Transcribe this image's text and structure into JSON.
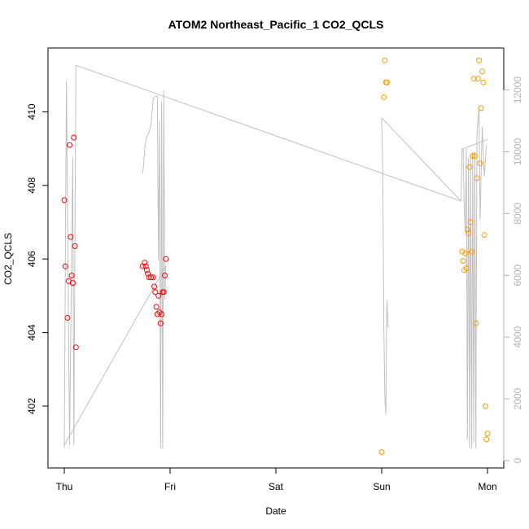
{
  "chart_data": {
    "type": "scatter",
    "title": "ATOM2 Northeast_Pacific_1 CO2_QCLS",
    "xlabel": "Date",
    "ylabel": "CO2_QCLS",
    "x_tick_labels": [
      "Thu",
      "Fri",
      "Sat",
      "Sun",
      "Mon"
    ],
    "x_tick_days": [
      0,
      1,
      2,
      3,
      4
    ],
    "xlim_days": [
      -0.2,
      4.1
    ],
    "ylim": [
      400.2,
      411.7
    ],
    "y_ticks": [
      402,
      404,
      406,
      408,
      410
    ],
    "y2lim": [
      -300,
      13600
    ],
    "y2_ticks": [
      0,
      2000,
      4000,
      6000,
      8000,
      10000,
      12000
    ],
    "grid": false,
    "colors": {
      "series1": "#ff0000",
      "series2": "#ff9900",
      "altitude": "#c0c0c0",
      "axis": "#000000",
      "axis_right": "#b3b3b3"
    },
    "series": [
      {
        "values": [
          [
            0.0,
            407.6
          ],
          [
            0.01,
            405.8
          ],
          [
            0.03,
            404.4
          ],
          [
            0.04,
            405.4
          ],
          [
            0.05,
            409.1
          ],
          [
            0.06,
            406.6
          ],
          [
            0.07,
            405.55
          ],
          [
            0.08,
            405.35
          ],
          [
            0.09,
            409.3
          ],
          [
            0.1,
            406.35
          ],
          [
            0.11,
            403.6
          ],
          [
            0.74,
            405.8
          ],
          [
            0.76,
            405.9
          ],
          [
            0.77,
            405.8
          ],
          [
            0.78,
            405.7
          ],
          [
            0.79,
            405.6
          ],
          [
            0.8,
            405.5
          ],
          [
            0.82,
            405.5
          ],
          [
            0.84,
            405.5
          ],
          [
            0.85,
            405.25
          ],
          [
            0.86,
            405.1
          ],
          [
            0.87,
            404.7
          ],
          [
            0.88,
            404.5
          ],
          [
            0.89,
            405.0
          ],
          [
            0.9,
            404.55
          ],
          [
            0.91,
            404.25
          ],
          [
            0.92,
            404.5
          ],
          [
            0.93,
            405.1
          ],
          [
            0.94,
            405.1
          ],
          [
            0.95,
            405.55
          ],
          [
            0.96,
            406.0
          ]
        ]
      },
      {
        "values": [
          [
            3.0,
            400.75
          ],
          [
            3.02,
            410.4
          ],
          [
            3.03,
            411.4
          ],
          [
            3.04,
            410.8
          ],
          [
            3.05,
            410.8
          ],
          [
            3.76,
            406.2
          ],
          [
            3.77,
            405.95
          ],
          [
            3.78,
            405.7
          ],
          [
            3.79,
            406.15
          ],
          [
            3.8,
            405.75
          ],
          [
            3.81,
            406.8
          ],
          [
            3.82,
            406.7
          ],
          [
            3.83,
            408.5
          ],
          [
            3.84,
            407.0
          ],
          [
            3.85,
            406.2
          ],
          [
            3.86,
            408.8
          ],
          [
            3.87,
            410.9
          ],
          [
            3.88,
            408.8
          ],
          [
            3.89,
            404.25
          ],
          [
            3.9,
            408.2
          ],
          [
            3.91,
            410.9
          ],
          [
            3.92,
            411.4
          ],
          [
            3.93,
            408.6
          ],
          [
            3.94,
            410.1
          ],
          [
            3.95,
            411.1
          ],
          [
            3.96,
            410.8
          ],
          [
            3.97,
            406.65
          ],
          [
            3.98,
            402.0
          ],
          [
            3.99,
            401.1
          ],
          [
            4.0,
            401.25
          ]
        ]
      }
    ],
    "altitude_line": [
      [
        0.0,
        400
      ],
      [
        0.02,
        12300
      ],
      [
        0.05,
        500
      ],
      [
        0.08,
        9800
      ],
      [
        0.09,
        500
      ],
      [
        0.11,
        12800
      ],
      [
        3.75,
        8400
      ],
      [
        3.76,
        10100
      ],
      [
        3.77,
        10100
      ],
      [
        3.78,
        8200
      ],
      [
        3.79,
        7400
      ],
      [
        3.8,
        10100
      ],
      [
        3.81,
        700
      ],
      [
        3.82,
        9800
      ],
      [
        3.83,
        400
      ],
      [
        3.84,
        9900
      ],
      [
        3.85,
        400
      ],
      [
        3.86,
        10000
      ],
      [
        3.87,
        600
      ],
      [
        3.88,
        10000
      ],
      [
        3.89,
        400
      ],
      [
        3.9,
        10500
      ],
      [
        3.92,
        11500
      ],
      [
        3.93,
        7800
      ],
      [
        3.95,
        10800
      ],
      [
        3.97,
        9200
      ],
      [
        3.99,
        10200
      ],
      [
        3.0,
        11100
      ],
      [
        3.01,
        9500
      ],
      [
        3.02,
        4400
      ],
      [
        3.03,
        2000
      ],
      [
        3.04,
        1500
      ],
      [
        3.045,
        4000
      ],
      [
        3.05,
        5200
      ],
      [
        3.06,
        4300
      ]
    ],
    "altitude_segments": [
      [
        [
          0.74,
          9300
        ],
        [
          0.75,
          9600
        ],
        [
          0.76,
          10100
        ],
        [
          0.78,
          10500
        ],
        [
          0.8,
          10600
        ],
        [
          0.82,
          10900
        ],
        [
          0.84,
          11700
        ],
        [
          0.86,
          11800
        ],
        [
          0.88,
          11800
        ],
        [
          0.89,
          6500
        ],
        [
          0.9,
          11000
        ],
        [
          0.91,
          400
        ],
        [
          0.92,
          11600
        ],
        [
          0.93,
          400
        ],
        [
          0.94,
          12000
        ],
        [
          0.95,
          5200
        ],
        [
          0.96,
          6300
        ]
      ],
      [
        [
          0.0,
          500
        ],
        [
          0.96,
          6300
        ]
      ],
      [
        [
          3.0,
          11100
        ],
        [
          3.75,
          8400
        ]
      ],
      [
        [
          3.77,
          10100
        ],
        [
          4.0,
          10400
        ]
      ]
    ]
  }
}
